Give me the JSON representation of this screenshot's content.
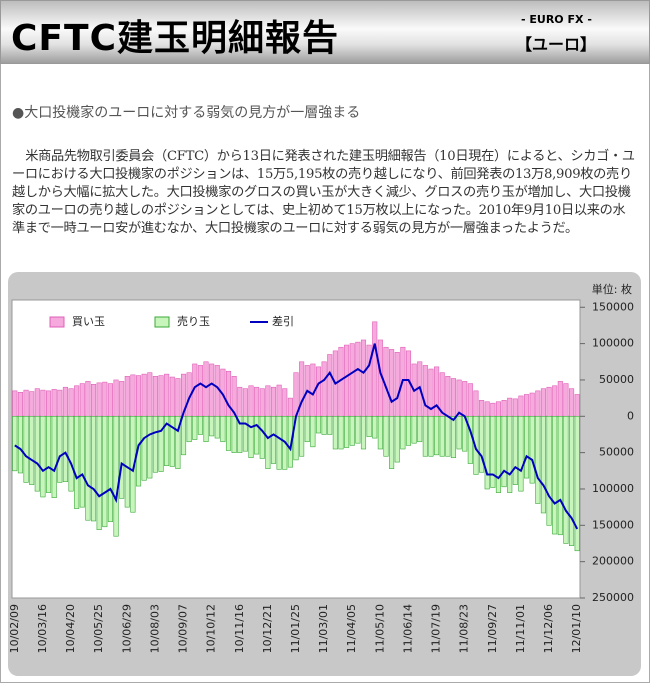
{
  "header": {
    "title": "CFTC建玉明細報告",
    "market": "- EURO FX -",
    "currency": "【ユーロ】"
  },
  "headline": "●大口投機家のユーロに対する弱気の見方が一層強まる",
  "body": "米商品先物取引委員会（CFTC）から13日に発表された建玉明細報告（10日現在）によると、シカゴ・ユーロにおける大口投機家のポジションは、15万5,195枚の売り越しになり、前回発表の13万8,909枚の売り越しから大幅に拡大した。大口投機家のグロスの買い玉が大きく減少、グロスの売り玉が増加し、大口投機家のユーロの売り越しのポジションとしては、史上初めて15万枚以上になった。2010年9月10日以来の水準まで一時ユーロ安が進むなか、大口投機家のユーロに対する弱気の見方が一層強まったようだ。",
  "chart_data": {
    "type": "bar",
    "unit": "単位: 枚",
    "categories": [
      "10/02/09",
      null,
      null,
      null,
      null,
      "10/03/16",
      null,
      null,
      null,
      null,
      "10/04/20",
      null,
      null,
      null,
      null,
      "10/05/25",
      null,
      null,
      null,
      null,
      "10/06/29",
      null,
      null,
      null,
      null,
      "10/08/03",
      null,
      null,
      null,
      null,
      "10/09/07",
      null,
      null,
      null,
      null,
      "10/10/12",
      null,
      null,
      null,
      null,
      "10/11/16",
      null,
      null,
      null,
      null,
      "10/12/21",
      null,
      null,
      null,
      null,
      "11/01/25",
      null,
      null,
      null,
      null,
      "11/03/01",
      null,
      null,
      null,
      null,
      "11/04/05",
      null,
      null,
      null,
      null,
      "11/05/10",
      null,
      null,
      null,
      null,
      "11/06/14",
      null,
      null,
      null,
      null,
      "11/07/19",
      null,
      null,
      null,
      null,
      "11/08/23",
      null,
      null,
      null,
      null,
      "11/09/27",
      null,
      null,
      null,
      null,
      "11/11/01",
      null,
      null,
      null,
      null,
      "11/12/06",
      null,
      null,
      null,
      null,
      "12/01/10"
    ],
    "series": [
      {
        "name": "買い玉",
        "type": "bar",
        "color": "#f5a9dc",
        "values": [
          35000,
          33000,
          36000,
          34000,
          38000,
          36000,
          35000,
          37000,
          36000,
          40000,
          38000,
          42000,
          45000,
          48000,
          44000,
          46000,
          47000,
          45000,
          50000,
          48000,
          55000,
          57000,
          56000,
          58000,
          60000,
          55000,
          56000,
          58000,
          54000,
          52000,
          58000,
          60000,
          72000,
          70000,
          75000,
          72000,
          70000,
          65000,
          62000,
          55000,
          40000,
          38000,
          42000,
          40000,
          38000,
          42000,
          40000,
          43000,
          38000,
          25000,
          60000,
          75000,
          70000,
          72000,
          68000,
          75000,
          85000,
          90000,
          95000,
          98000,
          100000,
          102000,
          105000,
          98000,
          130000,
          105000,
          95000,
          92000,
          88000,
          95000,
          90000,
          72000,
          75000,
          70000,
          65000,
          68000,
          60000,
          55000,
          52000,
          50000,
          48000,
          45000,
          35000,
          22000,
          20000,
          18000,
          20000,
          22000,
          25000,
          24000,
          28000,
          30000,
          32000,
          35000,
          38000,
          40000,
          42000,
          48000,
          45000,
          38000,
          30000
        ]
      },
      {
        "name": "売り玉",
        "type": "bar",
        "color": "#c8f5bc",
        "values": [
          -75000,
          -78000,
          -91000,
          -94000,
          -103000,
          -111000,
          -105000,
          -112000,
          -91000,
          -90000,
          -103000,
          -127000,
          -125000,
          -143000,
          -144000,
          -156000,
          -152000,
          -145000,
          -165000,
          -113000,
          -125000,
          -132000,
          -96000,
          -88000,
          -85000,
          -77000,
          -76000,
          -68000,
          -69000,
          -72000,
          -53000,
          -35000,
          -32000,
          -25000,
          -35000,
          -27000,
          -30000,
          -35000,
          -47000,
          -50000,
          -50000,
          -48000,
          -57000,
          -52000,
          -58000,
          -72000,
          -65000,
          -73000,
          -73000,
          -70000,
          -60000,
          -55000,
          -35000,
          -42000,
          -23000,
          -25000,
          -25000,
          -45000,
          -45000,
          -43000,
          -40000,
          -37000,
          -45000,
          -28000,
          -30000,
          -45000,
          -55000,
          -72000,
          -63000,
          -45000,
          -40000,
          -37000,
          -35000,
          -55000,
          -55000,
          -53000,
          -55000,
          -55000,
          -57000,
          -45000,
          -48000,
          -65000,
          -80000,
          -77000,
          -100000,
          -98000,
          -105000,
          -97000,
          -105000,
          -94000,
          -103000,
          -85000,
          -92000,
          -120000,
          -133000,
          -150000,
          -162000,
          -163000,
          -175000,
          -178000,
          -185000
        ]
      },
      {
        "name": "差引",
        "type": "line",
        "color": "#0000c0",
        "values": [
          -40000,
          -45000,
          -55000,
          -60000,
          -65000,
          -75000,
          -70000,
          -75000,
          -55000,
          -50000,
          -65000,
          -85000,
          -80000,
          -95000,
          -100000,
          -110000,
          -105000,
          -100000,
          -115000,
          -65000,
          -70000,
          -75000,
          -40000,
          -30000,
          -25000,
          -22000,
          -20000,
          -10000,
          -15000,
          -20000,
          5000,
          25000,
          40000,
          45000,
          40000,
          45000,
          40000,
          30000,
          15000,
          5000,
          -10000,
          -10000,
          -15000,
          -12000,
          -20000,
          -30000,
          -25000,
          -30000,
          -35000,
          -45000,
          0,
          20000,
          35000,
          30000,
          45000,
          50000,
          60000,
          45000,
          50000,
          55000,
          60000,
          65000,
          60000,
          70000,
          100000,
          60000,
          40000,
          20000,
          25000,
          50000,
          50000,
          35000,
          40000,
          15000,
          10000,
          15000,
          5000,
          0,
          -5000,
          5000,
          0,
          -20000,
          -45000,
          -55000,
          -80000,
          -80000,
          -85000,
          -75000,
          -80000,
          -70000,
          -75000,
          -55000,
          -60000,
          -85000,
          -95000,
          -110000,
          -120000,
          -115000,
          -130000,
          -140000,
          -155000
        ]
      }
    ],
    "ylim": [
      -250000,
      160000
    ],
    "yticks": [
      150000,
      100000,
      50000,
      0,
      {
        "value": -50000,
        "label": "50000"
      },
      {
        "value": -100000,
        "label": "100000"
      },
      {
        "value": -150000,
        "label": "150000"
      },
      {
        "value": -200000,
        "label": "200000"
      },
      {
        "value": -250000,
        "label": "250000"
      }
    ],
    "grid": false
  }
}
